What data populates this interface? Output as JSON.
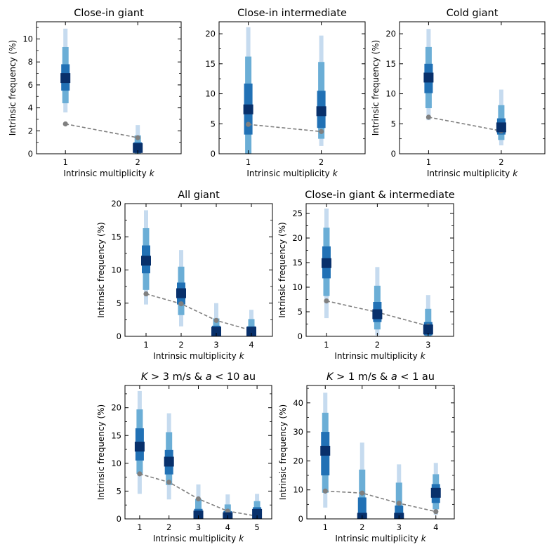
{
  "colors": {
    "band_outer": "#c6dbef",
    "band_mid": "#6baed6",
    "band_inner": "#2171b5",
    "marker": "#08306b",
    "observed": "#808080"
  },
  "chart_data": [
    {
      "type": "errorbar",
      "title": "Close-in giant",
      "xlabel": "Intrinsic multiplicity",
      "xlabel_var": "k",
      "ylabel": "Intrinsic frequency (%)",
      "x": [
        1,
        2
      ],
      "xticks": [
        "1",
        "2"
      ],
      "xlim": [
        0.6,
        2.6
      ],
      "ylim": [
        0,
        11.5
      ],
      "yticks": [
        0,
        2,
        4,
        6,
        8,
        10
      ],
      "ytick_labels": [
        "0",
        "2",
        "4",
        "6",
        "8",
        "10"
      ],
      "median": [
        6.6,
        0.5
      ],
      "ci_68": [
        [
          5.5,
          7.8
        ],
        [
          0.1,
          1.0
        ]
      ],
      "ci_95": [
        [
          4.4,
          9.3
        ],
        [
          0.0,
          1.6
        ]
      ],
      "ci_99": [
        [
          3.6,
          10.9
        ],
        [
          0.0,
          2.5
        ]
      ],
      "observed": [
        2.6,
        1.4
      ]
    },
    {
      "type": "errorbar",
      "title": "Close-in intermediate",
      "xlabel": "Intrinsic multiplicity",
      "xlabel_var": "k",
      "ylabel": "",
      "x": [
        1,
        2
      ],
      "xticks": [
        "1",
        "2"
      ],
      "xlim": [
        0.6,
        2.6
      ],
      "ylim": [
        0,
        22
      ],
      "yticks": [
        0,
        5,
        10,
        15,
        20
      ],
      "ytick_labels": [
        "0",
        "5",
        "10",
        "15",
        "20"
      ],
      "median": [
        7.4,
        7.1
      ],
      "ci_68": [
        [
          3.2,
          11.7
        ],
        [
          4.3,
          10.5
        ]
      ],
      "ci_95": [
        [
          0.0,
          16.2
        ],
        [
          2.5,
          15.3
        ]
      ],
      "ci_99": [
        [
          0.0,
          21.1
        ],
        [
          1.3,
          19.7
        ]
      ],
      "observed": [
        4.9,
        3.7
      ]
    },
    {
      "type": "errorbar",
      "title": "Cold giant",
      "xlabel": "Intrinsic multiplicity",
      "xlabel_var": "k",
      "ylabel": "Intrinsic frequency (%)",
      "x": [
        1,
        2
      ],
      "xticks": [
        "1",
        "2"
      ],
      "xlim": [
        0.6,
        2.6
      ],
      "ylim": [
        0,
        22
      ],
      "yticks": [
        0,
        5,
        10,
        15,
        20
      ],
      "ytick_labels": [
        "0",
        "5",
        "10",
        "15",
        "20"
      ],
      "median": [
        12.7,
        4.4
      ],
      "ci_68": [
        [
          10.1,
          15.0
        ],
        [
          3.2,
          5.9
        ]
      ],
      "ci_95": [
        [
          7.6,
          17.8
        ],
        [
          2.3,
          8.1
        ]
      ],
      "ci_99": [
        [
          5.6,
          20.8
        ],
        [
          1.4,
          10.7
        ]
      ],
      "observed": [
        6.1,
        3.8
      ]
    },
    {
      "type": "errorbar",
      "title": "All giant",
      "xlabel": "Intrinsic multiplicity",
      "xlabel_var": "k",
      "ylabel": "Intrinsic frequency (%)",
      "x": [
        1,
        2,
        3,
        4
      ],
      "xticks": [
        "1",
        "2",
        "3",
        "4"
      ],
      "xlim": [
        0.4,
        4.6
      ],
      "ylim": [
        0,
        20
      ],
      "yticks": [
        0,
        5,
        10,
        15,
        20
      ],
      "ytick_labels": [
        "0",
        "5",
        "10",
        "15",
        "20"
      ],
      "median": [
        11.4,
        6.5,
        0.7,
        0.7
      ],
      "ci_68": [
        [
          9.5,
          13.7
        ],
        [
          4.8,
          8.1
        ],
        [
          0.0,
          1.6
        ],
        [
          0.0,
          1.5
        ]
      ],
      "ci_95": [
        [
          7.0,
          16.3
        ],
        [
          3.2,
          10.5
        ],
        [
          0.0,
          2.7
        ],
        [
          0.0,
          2.6
        ]
      ],
      "ci_99": [
        [
          4.8,
          19.0
        ],
        [
          1.5,
          13.0
        ],
        [
          0.0,
          5.0
        ],
        [
          0.0,
          4.0
        ]
      ],
      "observed": [
        6.4,
        4.9,
        2.4,
        0.9
      ]
    },
    {
      "type": "errorbar",
      "title": "Close-in giant & intermediate",
      "xlabel": "Intrinsic multiplicity",
      "xlabel_var": "k",
      "ylabel": "Intrinsic frequency (%)",
      "x": [
        1,
        2,
        3
      ],
      "xticks": [
        "1",
        "2",
        "3"
      ],
      "xlim": [
        0.6,
        3.5
      ],
      "ylim": [
        0,
        27
      ],
      "yticks": [
        0,
        5,
        10,
        15,
        20,
        25
      ],
      "ytick_labels": [
        "0",
        "5",
        "10",
        "15",
        "20",
        "25"
      ],
      "median": [
        14.9,
        4.5,
        1.4
      ],
      "ci_68": [
        [
          11.8,
          18.3
        ],
        [
          2.9,
          7.0
        ],
        [
          0.2,
          2.9
        ]
      ],
      "ci_95": [
        [
          8.2,
          22.1
        ],
        [
          1.4,
          10.3
        ],
        [
          0.0,
          5.6
        ]
      ],
      "ci_99": [
        [
          3.7,
          26.0
        ],
        [
          0.2,
          14.1
        ],
        [
          0.0,
          8.4
        ]
      ],
      "observed": [
        7.2,
        4.9,
        2.1
      ]
    },
    {
      "type": "errorbar",
      "title": "K > 3 m/s & a < 10 au",
      "title_parts": [
        "K",
        " > 3 m/s & ",
        "a",
        " < 10 au"
      ],
      "xlabel": "Intrinsic multiplicity",
      "xlabel_var": "k",
      "ylabel": "Intrinsic frequency (%)",
      "x": [
        1,
        2,
        3,
        4,
        5
      ],
      "xticks": [
        "1",
        "2",
        "3",
        "4",
        "5"
      ],
      "xlim": [
        0.5,
        5.5
      ],
      "ylim": [
        0,
        24
      ],
      "yticks": [
        0,
        5,
        10,
        15,
        20
      ],
      "ytick_labels": [
        "0",
        "5",
        "10",
        "15",
        "20"
      ],
      "median": [
        13.0,
        10.3,
        0.6,
        0.3,
        0.9
      ],
      "ci_68": [
        [
          10.5,
          16.3
        ],
        [
          8.0,
          12.4
        ],
        [
          0.0,
          1.8
        ],
        [
          0.0,
          1.4
        ],
        [
          0.0,
          2.1
        ]
      ],
      "ci_95": [
        [
          8.1,
          19.7
        ],
        [
          6.1,
          15.6
        ],
        [
          0.0,
          3.6
        ],
        [
          0.0,
          2.6
        ],
        [
          0.0,
          3.2
        ]
      ],
      "ci_99": [
        [
          4.5,
          23.0
        ],
        [
          3.5,
          19.0
        ],
        [
          0.0,
          6.2
        ],
        [
          0.0,
          4.4
        ],
        [
          0.0,
          4.5
        ]
      ],
      "observed": [
        8.1,
        6.6,
        3.6,
        1.4,
        0.5
      ]
    },
    {
      "type": "errorbar",
      "title": "K > 1 m/s & a < 1 au",
      "title_parts": [
        "K",
        " > 1 m/s & ",
        "a",
        " < 1 au"
      ],
      "xlabel": "Intrinsic multiplicity",
      "xlabel_var": "k",
      "ylabel": "Intrinsic frequency (%)",
      "x": [
        1,
        2,
        3,
        4
      ],
      "xticks": [
        "1",
        "2",
        "3",
        "4"
      ],
      "xlim": [
        0.5,
        4.5
      ],
      "ylim": [
        0,
        46
      ],
      "yticks": [
        0,
        10,
        20,
        30,
        40
      ],
      "ytick_labels": [
        "0",
        "10",
        "20",
        "30",
        "40"
      ],
      "median": [
        23.5,
        0.4,
        0.4,
        9.0
      ],
      "ci_68": [
        [
          15.0,
          30.0
        ],
        [
          0.0,
          7.4
        ],
        [
          0.0,
          4.6
        ],
        [
          5.5,
          12.0
        ]
      ],
      "ci_95": [
        [
          9.0,
          36.6
        ],
        [
          0.0,
          17.0
        ],
        [
          0.0,
          12.5
        ],
        [
          3.3,
          15.4
        ]
      ],
      "ci_99": [
        [
          3.9,
          43.5
        ],
        [
          0.0,
          26.3
        ],
        [
          0.0,
          18.8
        ],
        [
          1.4,
          19.3
        ]
      ],
      "observed": [
        9.6,
        8.9,
        5.4,
        2.5
      ]
    }
  ]
}
